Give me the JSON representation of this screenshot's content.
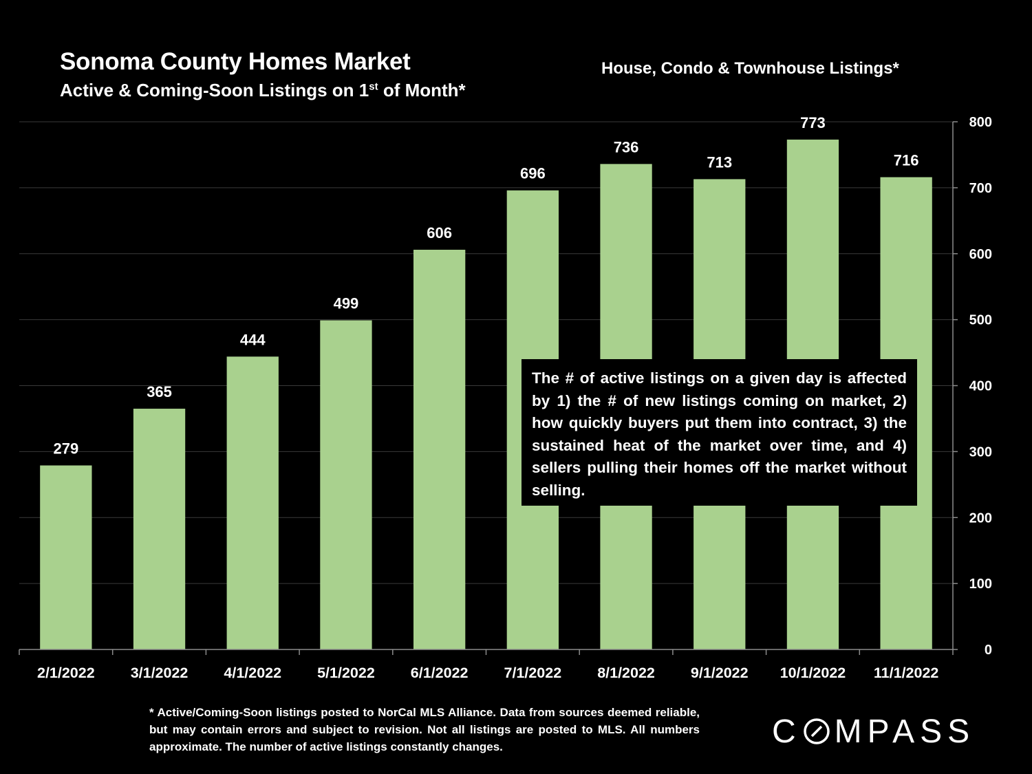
{
  "header": {
    "title": "Sonoma County Homes Market",
    "subtitle_main": "Active & Coming-Soon Listings on 1",
    "subtitle_sup": "st",
    "subtitle_end": " of Month*",
    "series_label": "House, Condo & Townhouse Listings*"
  },
  "callout": {
    "text": "The # of active listings on a given day is affected by 1) the # of new listings coming on market, 2) how quickly buyers put them into contract, 3) the sustained heat of the market over time, and 4) sellers pulling their homes off the market without selling."
  },
  "footnote": {
    "text": "* Active/Coming-Soon listings posted to NorCal MLS Alliance.  Data from sources deemed reliable, but may contain errors and subject to revision.  Not all listings are posted to MLS.  All numbers approximate. The number of active listings constantly changes."
  },
  "logo": {
    "before": "C",
    "after": "MPASS"
  },
  "colors": {
    "bar": "#a9d18e",
    "background": "#000000",
    "text": "#ffffff",
    "gridline": "#3a3a3a",
    "axis": "#8c8c8c"
  },
  "chart_data": {
    "type": "bar",
    "title": "Sonoma County Homes Market",
    "subtitle": "Active & Coming-Soon Listings on 1st of Month*",
    "series_name": "House, Condo & Townhouse Listings*",
    "categories": [
      "2/1/2022",
      "3/1/2022",
      "4/1/2022",
      "5/1/2022",
      "6/1/2022",
      "7/1/2022",
      "8/1/2022",
      "9/1/2022",
      "10/1/2022",
      "11/1/2022"
    ],
    "values": [
      279,
      365,
      444,
      499,
      606,
      696,
      736,
      713,
      773,
      716
    ],
    "ylim": [
      0,
      800
    ],
    "yticks": [
      0,
      100,
      200,
      300,
      400,
      500,
      600,
      700,
      800
    ],
    "y_axis_side": "right",
    "grid": true,
    "legend": "none",
    "data_labels": true
  }
}
